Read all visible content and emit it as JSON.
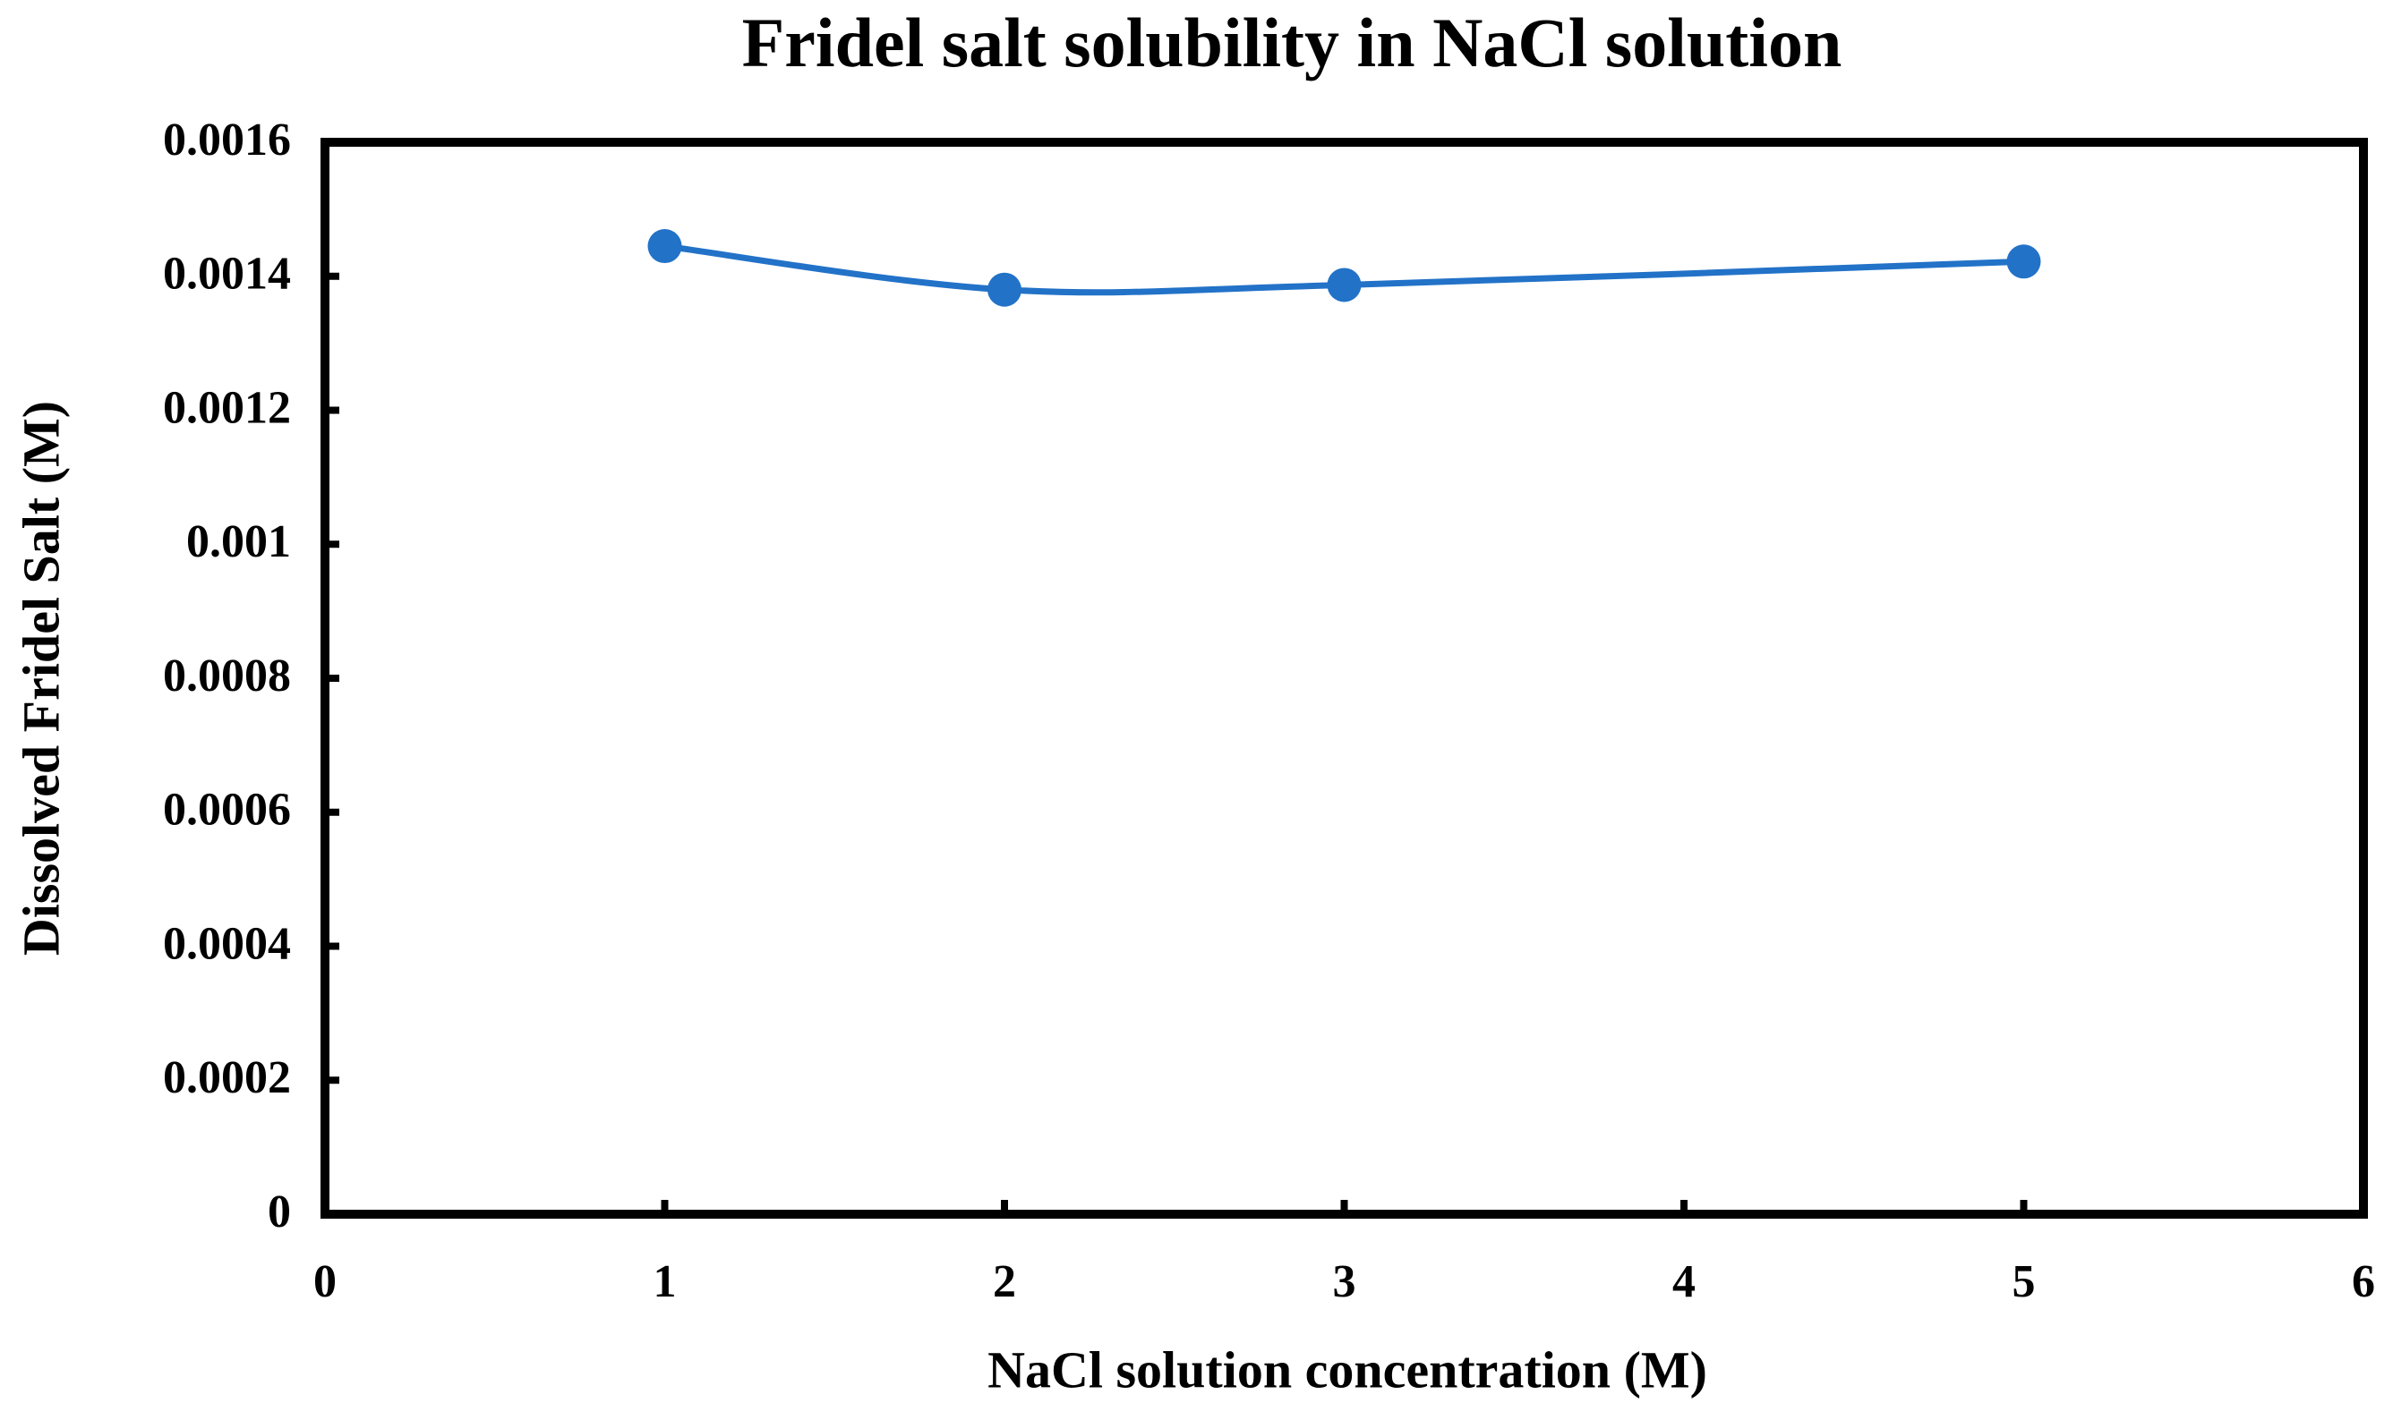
{
  "chart_data": {
    "type": "scatter",
    "title": "Fridel salt solubility in NaCl solution",
    "x_label": "NaCl solution concentration (M)",
    "y_label": "Dissolved Fridel Salt (M)",
    "series": [
      {
        "name": "Dissolved Fridel Salt",
        "color": "#2272c8",
        "x": [
          1,
          2,
          3,
          5
        ],
        "values": [
          0.001445,
          0.00138,
          0.001387,
          0.001422
        ]
      }
    ],
    "xlim": [
      0,
      6
    ],
    "xticks": [
      0,
      1,
      2,
      3,
      4,
      5,
      6
    ],
    "ylim": [
      0,
      0.0016
    ],
    "yticks": [
      0,
      0.0002,
      0.0004,
      0.0006,
      0.0008,
      0.001,
      0.0012,
      0.0014,
      0.0016
    ],
    "grid": false,
    "smooth": true
  }
}
